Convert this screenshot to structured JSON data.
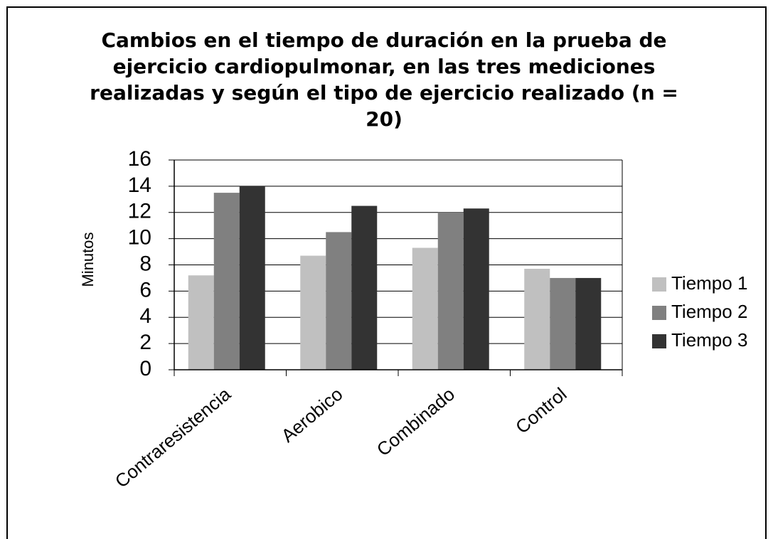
{
  "chart_data": {
    "type": "bar",
    "title": "Cambios en el tiempo de duración en la prueba de ejercicio cardiopulmonar, en las tres mediciones realizadas y según el tipo de ejercicio realizado (n = 20)",
    "y_label": "Minutos",
    "categories": [
      "Contraresistencia",
      "Aerobico",
      "Combinado",
      "Control"
    ],
    "series": [
      {
        "name": "Tiempo 1",
        "color": "#c0c0c0",
        "values": [
          7.2,
          8.7,
          9.3,
          7.7
        ]
      },
      {
        "name": "Tiempo 2",
        "color": "#808080",
        "values": [
          13.5,
          10.5,
          12.0,
          7.0
        ]
      },
      {
        "name": "Tiempo 3",
        "color": "#333333",
        "values": [
          14.0,
          12.5,
          12.3,
          7.0
        ]
      }
    ],
    "ylim": [
      0,
      16
    ],
    "yticks": [
      0,
      2,
      4,
      6,
      8,
      10,
      12,
      14,
      16
    ],
    "grid": true,
    "legend": "right"
  }
}
